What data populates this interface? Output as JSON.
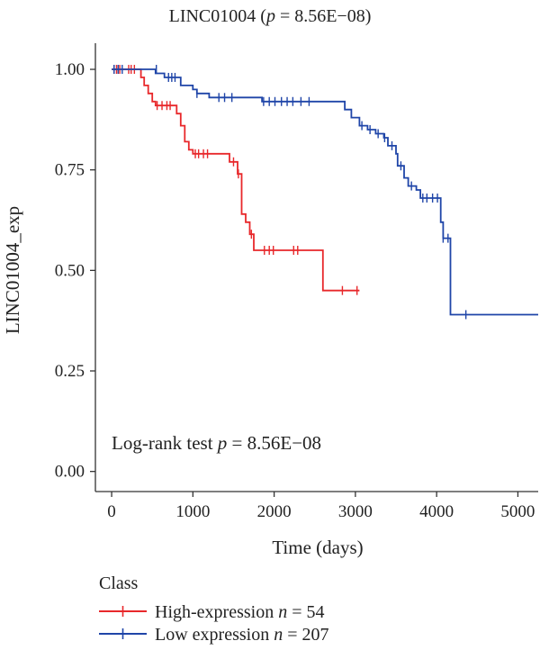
{
  "chart_data": {
    "type": "line",
    "title_main": "LINC01004 (",
    "title_p": "p",
    "title_rest": " = 8.56E−08)",
    "xlabel": "Time (days)",
    "ylabel": "LINC01004_exp",
    "xlim": [
      -200,
      5250
    ],
    "ylim": [
      -0.05,
      1.065
    ],
    "xticks": [
      0,
      1000,
      2000,
      3000,
      4000,
      5000
    ],
    "xtick_labels": [
      "0",
      "1000",
      "2000",
      "3000",
      "4000",
      "5000"
    ],
    "yticks": [
      0.0,
      0.25,
      0.5,
      0.75,
      1.0
    ],
    "ytick_labels": [
      "0.00",
      "0.25",
      "0.50",
      "0.75",
      "1.00"
    ],
    "annotation": {
      "prefix": "Log-rank test ",
      "p": "p",
      "suffix": " = 8.56E−08"
    },
    "legend_title": "Class",
    "series": [
      {
        "name": "High-expression",
        "n_label": "n",
        "n_value": " = 54",
        "color": "#e8282b",
        "steps": [
          [
            0,
            1.0
          ],
          [
            330,
            1.0
          ],
          [
            360,
            0.98
          ],
          [
            400,
            0.96
          ],
          [
            450,
            0.94
          ],
          [
            500,
            0.92
          ],
          [
            540,
            0.91
          ],
          [
            760,
            0.91
          ],
          [
            800,
            0.89
          ],
          [
            850,
            0.86
          ],
          [
            900,
            0.82
          ],
          [
            950,
            0.8
          ],
          [
            1000,
            0.79
          ],
          [
            1400,
            0.79
          ],
          [
            1450,
            0.77
          ],
          [
            1550,
            0.74
          ],
          [
            1600,
            0.64
          ],
          [
            1650,
            0.62
          ],
          [
            1700,
            0.59
          ],
          [
            1750,
            0.55
          ],
          [
            2580,
            0.55
          ],
          [
            2600,
            0.45
          ],
          [
            3050,
            0.45
          ]
        ],
        "censors": [
          [
            30,
            1.0
          ],
          [
            60,
            1.0
          ],
          [
            100,
            1.0
          ],
          [
            210,
            1.0
          ],
          [
            240,
            1.0
          ],
          [
            280,
            1.0
          ],
          [
            560,
            0.91
          ],
          [
            620,
            0.91
          ],
          [
            680,
            0.91
          ],
          [
            720,
            0.91
          ],
          [
            1030,
            0.79
          ],
          [
            1070,
            0.79
          ],
          [
            1130,
            0.79
          ],
          [
            1180,
            0.79
          ],
          [
            1500,
            0.77
          ],
          [
            1560,
            0.74
          ],
          [
            1720,
            0.59
          ],
          [
            1880,
            0.55
          ],
          [
            1940,
            0.55
          ],
          [
            1990,
            0.55
          ],
          [
            2240,
            0.55
          ],
          [
            2290,
            0.55
          ],
          [
            2840,
            0.45
          ],
          [
            3020,
            0.45
          ]
        ]
      },
      {
        "name": "Low expression",
        "n_label": "n",
        "n_value": " = 207",
        "color": "#1f45a8",
        "steps": [
          [
            0,
            1.0
          ],
          [
            500,
            1.0
          ],
          [
            540,
            0.99
          ],
          [
            650,
            0.98
          ],
          [
            850,
            0.96
          ],
          [
            1000,
            0.95
          ],
          [
            1050,
            0.94
          ],
          [
            1200,
            0.93
          ],
          [
            1800,
            0.93
          ],
          [
            1850,
            0.92
          ],
          [
            2850,
            0.92
          ],
          [
            2870,
            0.9
          ],
          [
            2950,
            0.88
          ],
          [
            3050,
            0.86
          ],
          [
            3150,
            0.85
          ],
          [
            3250,
            0.84
          ],
          [
            3350,
            0.83
          ],
          [
            3400,
            0.81
          ],
          [
            3500,
            0.79
          ],
          [
            3520,
            0.76
          ],
          [
            3600,
            0.73
          ],
          [
            3650,
            0.71
          ],
          [
            3750,
            0.7
          ],
          [
            3800,
            0.68
          ],
          [
            3950,
            0.68
          ],
          [
            4050,
            0.62
          ],
          [
            4080,
            0.58
          ],
          [
            4130,
            0.58
          ],
          [
            4170,
            0.39
          ],
          [
            5250,
            0.39
          ]
        ],
        "censors": [
          [
            30,
            1.0
          ],
          [
            80,
            1.0
          ],
          [
            130,
            1.0
          ],
          [
            550,
            1.0
          ],
          [
            700,
            0.98
          ],
          [
            740,
            0.98
          ],
          [
            780,
            0.98
          ],
          [
            1050,
            0.94
          ],
          [
            1320,
            0.93
          ],
          [
            1390,
            0.93
          ],
          [
            1480,
            0.93
          ],
          [
            1870,
            0.92
          ],
          [
            1940,
            0.92
          ],
          [
            2010,
            0.92
          ],
          [
            2090,
            0.92
          ],
          [
            2160,
            0.92
          ],
          [
            2230,
            0.92
          ],
          [
            2330,
            0.92
          ],
          [
            2430,
            0.92
          ],
          [
            3080,
            0.86
          ],
          [
            3180,
            0.85
          ],
          [
            3280,
            0.84
          ],
          [
            3360,
            0.83
          ],
          [
            3450,
            0.81
          ],
          [
            3560,
            0.76
          ],
          [
            3690,
            0.71
          ],
          [
            3830,
            0.68
          ],
          [
            3880,
            0.68
          ],
          [
            3950,
            0.68
          ],
          [
            4010,
            0.68
          ],
          [
            4080,
            0.58
          ],
          [
            4140,
            0.58
          ],
          [
            4360,
            0.39
          ]
        ]
      }
    ]
  }
}
